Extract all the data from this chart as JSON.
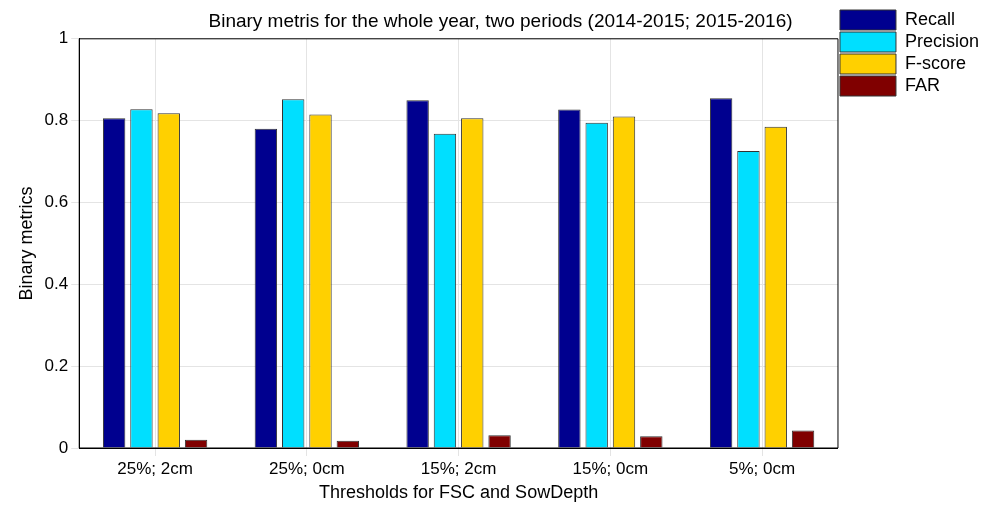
{
  "chart_data": {
    "type": "bar",
    "title": "Binary metris for the whole year, two periods (2014-2015; 2015-2016)",
    "xlabel": "Thresholds for FSC and SowDepth",
    "ylabel": "Binary metrics",
    "categories": [
      "25%; 2cm",
      "25%; 0cm",
      "15%; 2cm",
      "15%; 0cm",
      "5%; 0cm"
    ],
    "series": [
      {
        "name": "Recall",
        "color": "#00008f",
        "values": [
          0.806,
          0.78,
          0.85,
          0.827,
          0.855
        ]
      },
      {
        "name": "Precision",
        "color": "#00dfff",
        "values": [
          0.828,
          0.852,
          0.768,
          0.795,
          0.726
        ]
      },
      {
        "name": "F-score",
        "color": "#ffd000",
        "values": [
          0.818,
          0.815,
          0.806,
          0.81,
          0.785
        ]
      },
      {
        "name": "FAR",
        "color": "#800000",
        "values": [
          0.02,
          0.018,
          0.031,
          0.029,
          0.043
        ]
      }
    ],
    "ylim": [
      0,
      1
    ],
    "yticks": [
      0,
      0.2,
      0.4,
      0.6,
      0.8,
      1
    ],
    "grid": true,
    "legend": "top right"
  }
}
